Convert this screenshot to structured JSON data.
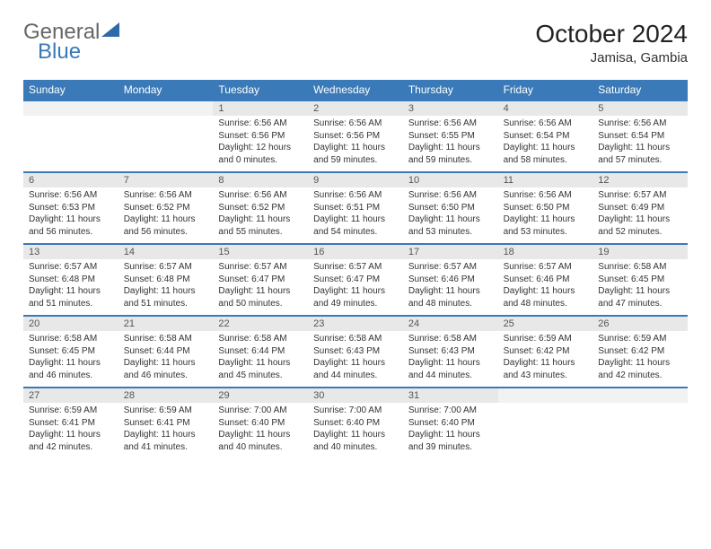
{
  "brand": {
    "part1": "General",
    "part2": "Blue"
  },
  "title": "October 2024",
  "location": "Jamisa, Gambia",
  "colors": {
    "header_bg": "#3a7ab8",
    "header_text": "#ffffff",
    "daynum_bg": "#e8e8e8",
    "row_border": "#3a7ab8",
    "body_text": "#333333"
  },
  "day_names": [
    "Sunday",
    "Monday",
    "Tuesday",
    "Wednesday",
    "Thursday",
    "Friday",
    "Saturday"
  ],
  "weeks": [
    [
      {
        "n": "",
        "sr": "",
        "ss": "",
        "dl": ""
      },
      {
        "n": "",
        "sr": "",
        "ss": "",
        "dl": ""
      },
      {
        "n": "1",
        "sr": "Sunrise: 6:56 AM",
        "ss": "Sunset: 6:56 PM",
        "dl": "Daylight: 12 hours and 0 minutes."
      },
      {
        "n": "2",
        "sr": "Sunrise: 6:56 AM",
        "ss": "Sunset: 6:56 PM",
        "dl": "Daylight: 11 hours and 59 minutes."
      },
      {
        "n": "3",
        "sr": "Sunrise: 6:56 AM",
        "ss": "Sunset: 6:55 PM",
        "dl": "Daylight: 11 hours and 59 minutes."
      },
      {
        "n": "4",
        "sr": "Sunrise: 6:56 AM",
        "ss": "Sunset: 6:54 PM",
        "dl": "Daylight: 11 hours and 58 minutes."
      },
      {
        "n": "5",
        "sr": "Sunrise: 6:56 AM",
        "ss": "Sunset: 6:54 PM",
        "dl": "Daylight: 11 hours and 57 minutes."
      }
    ],
    [
      {
        "n": "6",
        "sr": "Sunrise: 6:56 AM",
        "ss": "Sunset: 6:53 PM",
        "dl": "Daylight: 11 hours and 56 minutes."
      },
      {
        "n": "7",
        "sr": "Sunrise: 6:56 AM",
        "ss": "Sunset: 6:52 PM",
        "dl": "Daylight: 11 hours and 56 minutes."
      },
      {
        "n": "8",
        "sr": "Sunrise: 6:56 AM",
        "ss": "Sunset: 6:52 PM",
        "dl": "Daylight: 11 hours and 55 minutes."
      },
      {
        "n": "9",
        "sr": "Sunrise: 6:56 AM",
        "ss": "Sunset: 6:51 PM",
        "dl": "Daylight: 11 hours and 54 minutes."
      },
      {
        "n": "10",
        "sr": "Sunrise: 6:56 AM",
        "ss": "Sunset: 6:50 PM",
        "dl": "Daylight: 11 hours and 53 minutes."
      },
      {
        "n": "11",
        "sr": "Sunrise: 6:56 AM",
        "ss": "Sunset: 6:50 PM",
        "dl": "Daylight: 11 hours and 53 minutes."
      },
      {
        "n": "12",
        "sr": "Sunrise: 6:57 AM",
        "ss": "Sunset: 6:49 PM",
        "dl": "Daylight: 11 hours and 52 minutes."
      }
    ],
    [
      {
        "n": "13",
        "sr": "Sunrise: 6:57 AM",
        "ss": "Sunset: 6:48 PM",
        "dl": "Daylight: 11 hours and 51 minutes."
      },
      {
        "n": "14",
        "sr": "Sunrise: 6:57 AM",
        "ss": "Sunset: 6:48 PM",
        "dl": "Daylight: 11 hours and 51 minutes."
      },
      {
        "n": "15",
        "sr": "Sunrise: 6:57 AM",
        "ss": "Sunset: 6:47 PM",
        "dl": "Daylight: 11 hours and 50 minutes."
      },
      {
        "n": "16",
        "sr": "Sunrise: 6:57 AM",
        "ss": "Sunset: 6:47 PM",
        "dl": "Daylight: 11 hours and 49 minutes."
      },
      {
        "n": "17",
        "sr": "Sunrise: 6:57 AM",
        "ss": "Sunset: 6:46 PM",
        "dl": "Daylight: 11 hours and 48 minutes."
      },
      {
        "n": "18",
        "sr": "Sunrise: 6:57 AM",
        "ss": "Sunset: 6:46 PM",
        "dl": "Daylight: 11 hours and 48 minutes."
      },
      {
        "n": "19",
        "sr": "Sunrise: 6:58 AM",
        "ss": "Sunset: 6:45 PM",
        "dl": "Daylight: 11 hours and 47 minutes."
      }
    ],
    [
      {
        "n": "20",
        "sr": "Sunrise: 6:58 AM",
        "ss": "Sunset: 6:45 PM",
        "dl": "Daylight: 11 hours and 46 minutes."
      },
      {
        "n": "21",
        "sr": "Sunrise: 6:58 AM",
        "ss": "Sunset: 6:44 PM",
        "dl": "Daylight: 11 hours and 46 minutes."
      },
      {
        "n": "22",
        "sr": "Sunrise: 6:58 AM",
        "ss": "Sunset: 6:44 PM",
        "dl": "Daylight: 11 hours and 45 minutes."
      },
      {
        "n": "23",
        "sr": "Sunrise: 6:58 AM",
        "ss": "Sunset: 6:43 PM",
        "dl": "Daylight: 11 hours and 44 minutes."
      },
      {
        "n": "24",
        "sr": "Sunrise: 6:58 AM",
        "ss": "Sunset: 6:43 PM",
        "dl": "Daylight: 11 hours and 44 minutes."
      },
      {
        "n": "25",
        "sr": "Sunrise: 6:59 AM",
        "ss": "Sunset: 6:42 PM",
        "dl": "Daylight: 11 hours and 43 minutes."
      },
      {
        "n": "26",
        "sr": "Sunrise: 6:59 AM",
        "ss": "Sunset: 6:42 PM",
        "dl": "Daylight: 11 hours and 42 minutes."
      }
    ],
    [
      {
        "n": "27",
        "sr": "Sunrise: 6:59 AM",
        "ss": "Sunset: 6:41 PM",
        "dl": "Daylight: 11 hours and 42 minutes."
      },
      {
        "n": "28",
        "sr": "Sunrise: 6:59 AM",
        "ss": "Sunset: 6:41 PM",
        "dl": "Daylight: 11 hours and 41 minutes."
      },
      {
        "n": "29",
        "sr": "Sunrise: 7:00 AM",
        "ss": "Sunset: 6:40 PM",
        "dl": "Daylight: 11 hours and 40 minutes."
      },
      {
        "n": "30",
        "sr": "Sunrise: 7:00 AM",
        "ss": "Sunset: 6:40 PM",
        "dl": "Daylight: 11 hours and 40 minutes."
      },
      {
        "n": "31",
        "sr": "Sunrise: 7:00 AM",
        "ss": "Sunset: 6:40 PM",
        "dl": "Daylight: 11 hours and 39 minutes."
      },
      {
        "n": "",
        "sr": "",
        "ss": "",
        "dl": ""
      },
      {
        "n": "",
        "sr": "",
        "ss": "",
        "dl": ""
      }
    ]
  ]
}
